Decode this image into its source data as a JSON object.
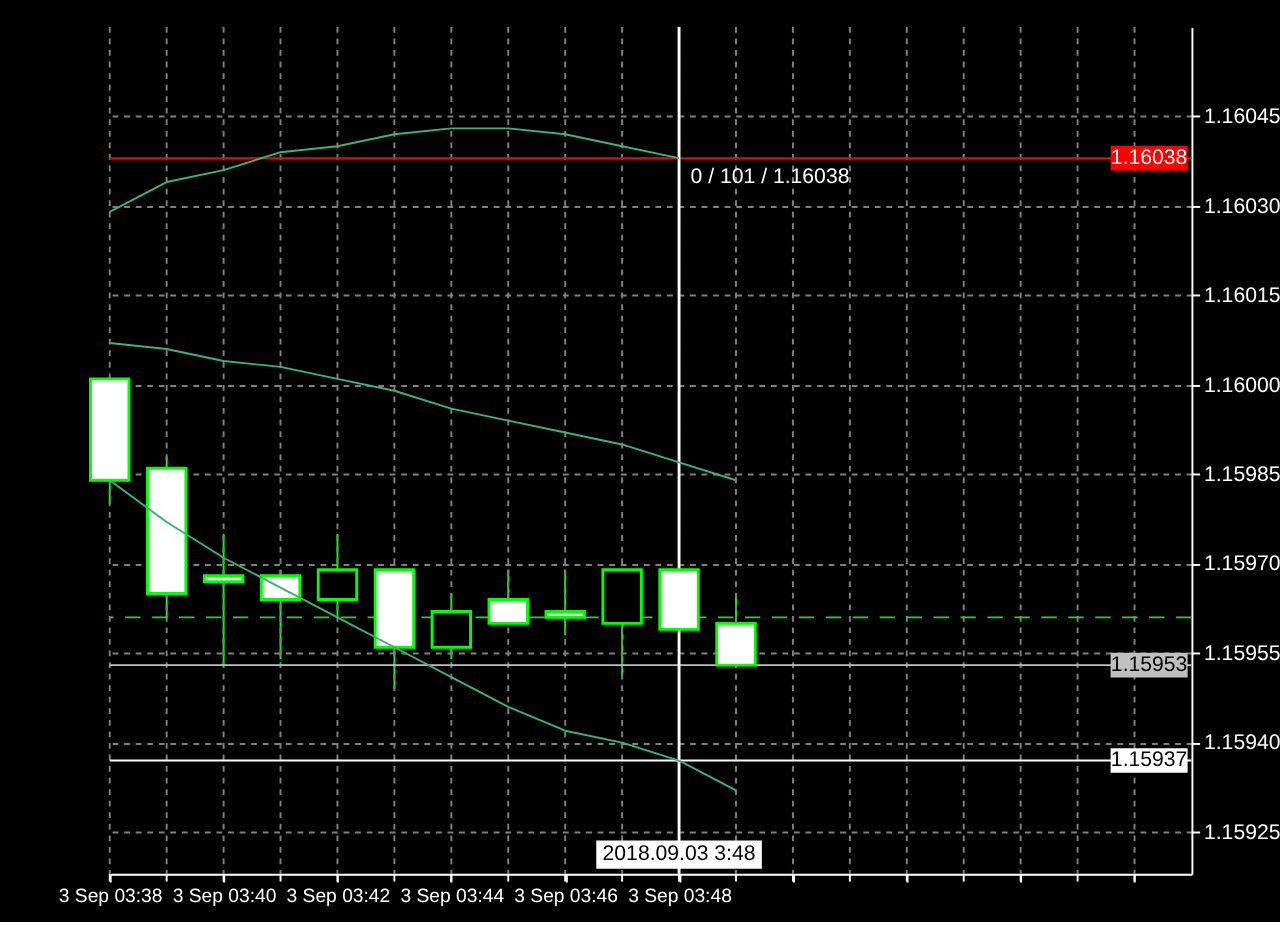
{
  "chart_data": {
    "type": "candlestick",
    "x": [
      "2018-09-03T03:38",
      "2018-09-03T03:39",
      "2018-09-03T03:40",
      "2018-09-03T03:41",
      "2018-09-03T03:42",
      "2018-09-03T03:43",
      "2018-09-03T03:44",
      "2018-09-03T03:45",
      "2018-09-03T03:46",
      "2018-09-03T03:47",
      "2018-09-03T03:48",
      "2018-09-03T03:49"
    ],
    "series": [
      {
        "type": "candlestick",
        "color": "#00ff00",
        "colors": [
          "#ffffff",
          "#ffffff",
          "#ffffff",
          "#ffffff",
          "#000000",
          "#ffffff",
          "#000000",
          "#ffffff",
          "#ffffff",
          "#000000",
          "#ffffff",
          "#ffffff"
        ],
        "ohlc": [
          [
            1.16001,
            1.16001,
            1.1598,
            1.15984
          ],
          [
            1.15986,
            1.15988,
            1.15961,
            1.15965
          ],
          [
            1.15968,
            1.15975,
            1.15953,
            1.15967
          ],
          [
            1.15968,
            1.15969,
            1.15954,
            1.15964
          ],
          [
            1.15964,
            1.15975,
            1.15961,
            1.15969
          ],
          [
            1.15969,
            1.15969,
            1.15949,
            1.15956
          ],
          [
            1.15956,
            1.15965,
            1.15954,
            1.15962
          ],
          [
            1.15964,
            1.15969,
            1.1596,
            1.1596
          ],
          [
            1.15962,
            1.15969,
            1.15958,
            1.15961
          ],
          [
            1.1596,
            1.15969,
            1.15951,
            1.15969
          ],
          [
            1.15969,
            1.15969,
            1.15959,
            1.15959
          ],
          [
            1.1596,
            1.15965,
            1.15953,
            1.15953
          ]
        ]
      },
      {
        "type": "line",
        "color": "#3cb371",
        "values": [
          1.16029,
          1.16034,
          1.16036,
          1.16039,
          1.1604,
          1.16042,
          1.16043,
          1.16043,
          1.16042,
          1.1604,
          1.16038,
          null
        ]
      },
      {
        "type": "line",
        "color": "#3cb371",
        "values": [
          1.16007,
          1.16006,
          1.16004,
          1.16003,
          1.16001,
          1.15999,
          1.15996,
          1.15994,
          1.15992,
          1.1599,
          1.15987,
          1.15984
        ]
      },
      {
        "type": "line",
        "color": "#3cb371",
        "values": [
          1.15984,
          1.15977,
          1.15971,
          1.15966,
          1.15961,
          1.15956,
          1.15951,
          1.15946,
          1.15942,
          1.1594,
          1.15937,
          1.15932
        ]
      }
    ],
    "xlim": [
      "2018-09-03T03:38",
      "2018-09-03T03:57"
    ],
    "xticks": [
      {
        "value": "2018-09-03T03:38",
        "label": "3 Sep 03:38"
      },
      {
        "value": "2018-09-03T03:39",
        "label": null
      },
      {
        "value": "2018-09-03T03:40",
        "label": "3 Sep 03:40"
      },
      {
        "value": "2018-09-03T03:41",
        "label": null
      },
      {
        "value": "2018-09-03T03:42",
        "label": "3 Sep 03:42"
      },
      {
        "value": "2018-09-03T03:43",
        "label": null
      },
      {
        "value": "2018-09-03T03:44",
        "label": "3 Sep 03:44"
      },
      {
        "value": "2018-09-03T03:45",
        "label": null
      },
      {
        "value": "2018-09-03T03:46",
        "label": "3 Sep 03:46"
      },
      {
        "value": "2018-09-03T03:47",
        "label": null
      },
      {
        "value": "2018-09-03T03:48",
        "label": "3 Sep 03:48"
      },
      {
        "value": "2018-09-03T03:49",
        "label": null
      },
      {
        "value": "2018-09-03T03:50",
        "label": null
      },
      {
        "value": "2018-09-03T03:51",
        "label": null
      },
      {
        "value": "2018-09-03T03:52",
        "label": null
      },
      {
        "value": "2018-09-03T03:53",
        "label": null
      },
      {
        "value": "2018-09-03T03:54",
        "label": null
      },
      {
        "value": "2018-09-03T03:55",
        "label": null
      },
      {
        "value": "2018-09-03T03:56",
        "label": null
      }
    ],
    "ylim": [
      1.15918,
      1.1606
    ],
    "yticks": [
      {
        "value": 1.15925,
        "label": "1.15925"
      },
      {
        "value": 1.1594,
        "label": "1.15940"
      },
      {
        "value": 1.15955,
        "label": "1.15955"
      },
      {
        "value": 1.1597,
        "label": "1.15970"
      },
      {
        "value": 1.15985,
        "label": "1.15985"
      },
      {
        "value": 1.16,
        "label": "1.16000"
      },
      {
        "value": 1.16015,
        "label": "1.16015"
      },
      {
        "value": 1.1603,
        "label": "1.16030"
      },
      {
        "value": 1.16045,
        "label": "1.16045"
      }
    ],
    "grid": true,
    "ref_lines": [
      {
        "axis": "y",
        "value": 1.16038,
        "label": "1.16038",
        "color": "#ff0000"
      },
      {
        "axis": "y",
        "value": 1.15953,
        "label": "1.15953",
        "color": "#c0c0c0"
      },
      {
        "axis": "y",
        "value": 1.15937,
        "label": "1.15937",
        "color": "#ffffff"
      },
      {
        "axis": "y",
        "value": 1.15961,
        "color": "#32cd32",
        "line_style": "dashed"
      },
      {
        "axis": "x",
        "value": "2018-09-03T03:48",
        "label": "2018.09.03 3:48",
        "color": "#ffffff"
      }
    ],
    "annotations": [
      {
        "text": "0 / 101 / 1.16038",
        "x": "2018-09-03T03:48",
        "y": 1.16038
      }
    ]
  }
}
